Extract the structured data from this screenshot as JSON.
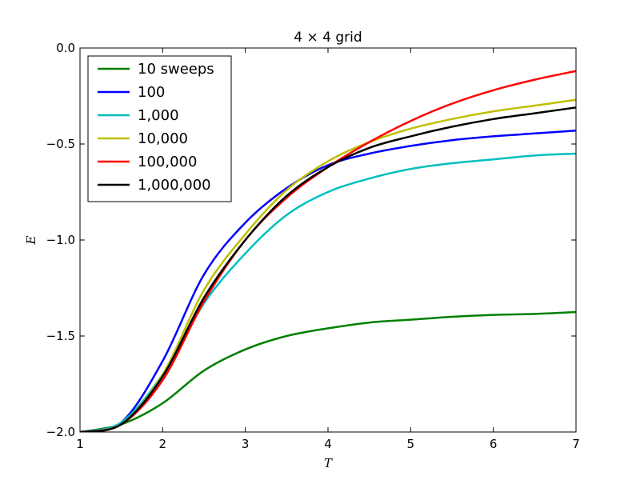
{
  "chart_data": {
    "type": "line",
    "title": "4 × 4 grid",
    "xlabel": "T",
    "ylabel": "E",
    "xlim": [
      1,
      7
    ],
    "ylim": [
      -2.0,
      0.0
    ],
    "xticks": [
      1,
      2,
      3,
      4,
      5,
      6,
      7
    ],
    "xtick_labels": [
      "1",
      "2",
      "3",
      "4",
      "5",
      "6",
      "7"
    ],
    "yticks": [
      -2.0,
      -1.5,
      -1.0,
      -0.5,
      0.0
    ],
    "ytick_labels": [
      "−2.0",
      "−1.5",
      "−1.0",
      "−0.5",
      "0.0"
    ],
    "grid": false,
    "legend_position": "top-left",
    "x": [
      1.0,
      1.5,
      2.0,
      2.5,
      3.0,
      3.5,
      4.0,
      4.5,
      5.0,
      5.5,
      6.0,
      6.5,
      7.0
    ],
    "series": [
      {
        "name": "10 sweeps",
        "color": "#008000",
        "values": [
          -2.0,
          -1.96,
          -1.85,
          -1.68,
          -1.57,
          -1.5,
          -1.46,
          -1.43,
          -1.415,
          -1.4,
          -1.39,
          -1.385,
          -1.375
        ]
      },
      {
        "name": "100",
        "color": "#0000ff",
        "values": [
          -2.0,
          -1.95,
          -1.63,
          -1.18,
          -0.91,
          -0.73,
          -0.61,
          -0.55,
          -0.51,
          -0.48,
          -0.46,
          -0.445,
          -0.43
        ]
      },
      {
        "name": "1,000",
        "color": "#00bfbf",
        "values": [
          -2.0,
          -1.95,
          -1.7,
          -1.33,
          -1.07,
          -0.87,
          -0.75,
          -0.68,
          -0.63,
          -0.6,
          -0.58,
          -0.56,
          -0.55
        ]
      },
      {
        "name": "10,000",
        "color": "#bfbf00",
        "values": [
          -2.0,
          -1.96,
          -1.7,
          -1.26,
          -0.97,
          -0.74,
          -0.59,
          -0.49,
          -0.42,
          -0.37,
          -0.33,
          -0.3,
          -0.27
        ]
      },
      {
        "name": "100,000",
        "color": "#ff0000",
        "values": [
          -2.0,
          -1.96,
          -1.73,
          -1.32,
          -1.0,
          -0.78,
          -0.62,
          -0.49,
          -0.38,
          -0.29,
          -0.22,
          -0.165,
          -0.12
        ]
      },
      {
        "name": "1,000,000",
        "color": "#000000",
        "values": [
          -2.0,
          -1.96,
          -1.71,
          -1.3,
          -1.0,
          -0.77,
          -0.62,
          -0.52,
          -0.46,
          -0.41,
          -0.37,
          -0.34,
          -0.31
        ]
      }
    ]
  }
}
